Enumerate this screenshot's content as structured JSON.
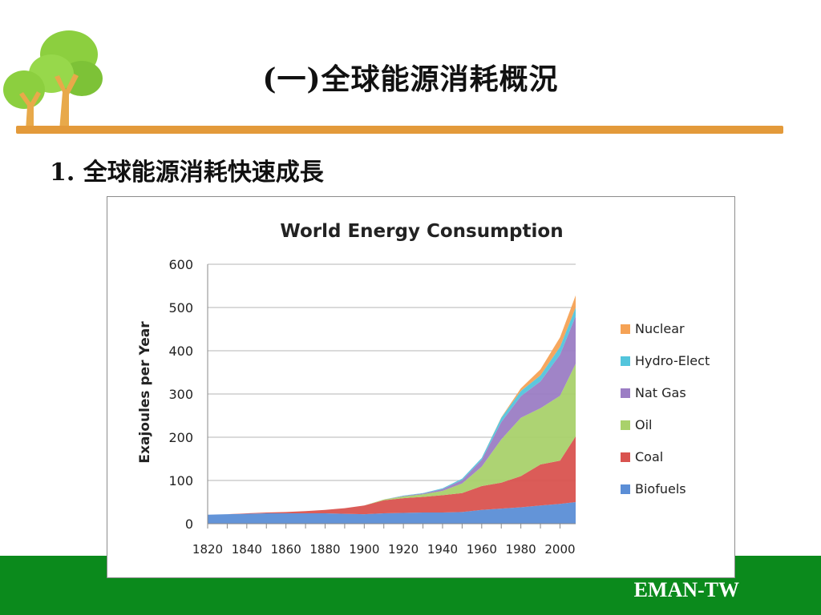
{
  "slide": {
    "title": "(一)全球能源消耗概況",
    "subtitle": "1. 全球能源消耗快速成長",
    "footer_brand": "EMAN-TW",
    "logo_icon": "tree-logo-icon",
    "colors": {
      "rule": "#e39a3a",
      "footer": "#0b8a1c"
    }
  },
  "chart_data": {
    "type": "area",
    "stacked": true,
    "title": "World Energy Consumption",
    "xlabel": "",
    "ylabel": "Exajoules per Year",
    "x": [
      1820,
      1830,
      1840,
      1850,
      1860,
      1870,
      1880,
      1890,
      1900,
      1910,
      1920,
      1930,
      1940,
      1950,
      1960,
      1970,
      1980,
      1990,
      2000,
      2008
    ],
    "xticks": [
      "1820",
      "1840",
      "1860",
      "1880",
      "1900",
      "1920",
      "1940",
      "1960",
      "1980",
      "2000"
    ],
    "ylim": [
      0,
      600
    ],
    "yticks": [
      "0",
      "100",
      "200",
      "300",
      "400",
      "500",
      "600"
    ],
    "grid": true,
    "legend_position": "right",
    "series": [
      {
        "name": "Biofuels",
        "color": "#5b8ed6",
        "values": [
          21,
          22,
          23,
          24,
          24,
          24,
          24,
          23,
          22,
          24,
          25,
          26,
          26,
          27,
          32,
          35,
          38,
          42,
          46,
          50
        ]
      },
      {
        "name": "Coal",
        "color": "#d9534f",
        "values": [
          0,
          0,
          1,
          2,
          3,
          5,
          8,
          13,
          20,
          30,
          34,
          36,
          40,
          44,
          55,
          60,
          72,
          95,
          100,
          152
        ]
      },
      {
        "name": "Oil",
        "color": "#a9d16b",
        "values": [
          0,
          0,
          0,
          0,
          0,
          0,
          0,
          0,
          0,
          2,
          4,
          6,
          10,
          22,
          45,
          100,
          135,
          130,
          150,
          168
        ]
      },
      {
        "name": "Nat Gas",
        "color": "#9b7dc4",
        "values": [
          0,
          0,
          0,
          0,
          0,
          0,
          0,
          0,
          0,
          0,
          1,
          2,
          4,
          8,
          16,
          40,
          50,
          62,
          95,
          110
        ]
      },
      {
        "name": "Hydro-Elect",
        "color": "#53c5dc",
        "values": [
          0,
          0,
          0,
          0,
          0,
          0,
          0,
          0,
          0,
          0,
          1,
          1,
          2,
          3,
          4,
          10,
          12,
          14,
          18,
          20
        ]
      },
      {
        "name": "Nuclear",
        "color": "#f5a255",
        "values": [
          0,
          0,
          0,
          0,
          0,
          0,
          0,
          0,
          0,
          0,
          0,
          0,
          0,
          0,
          0,
          1,
          6,
          14,
          22,
          28
        ]
      }
    ],
    "legend_order": [
      "Nuclear",
      "Hydro-Elect",
      "Nat Gas",
      "Oil",
      "Coal",
      "Biofuels"
    ]
  }
}
